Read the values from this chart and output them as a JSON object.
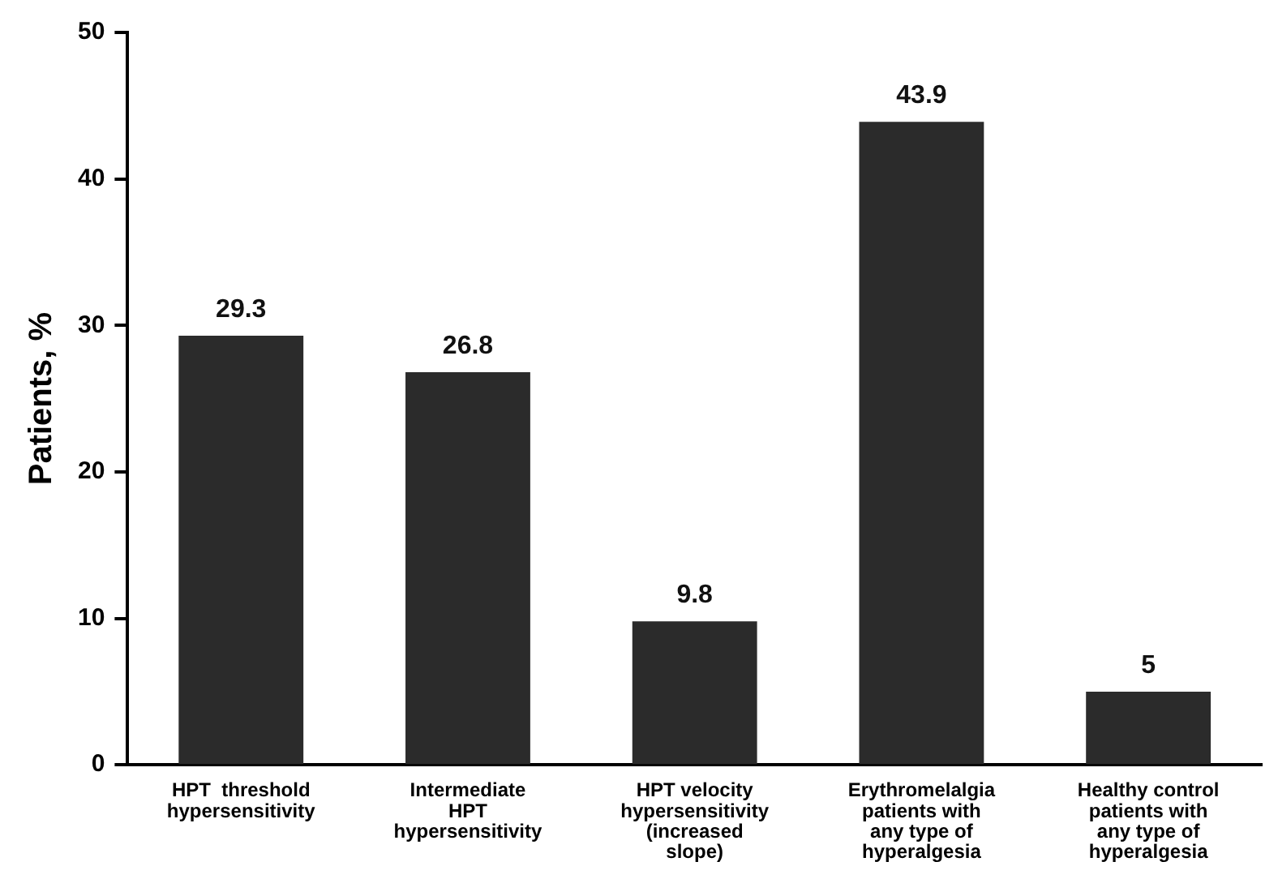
{
  "chart_data": {
    "type": "bar",
    "ylabel": "Patients, %",
    "categories": [
      "HPT  threshold\nhypersensitivity",
      "Intermediate\nHPT\nhypersensitivity",
      "HPT velocity\nhypersensitivity\n(increased\nslope)",
      "Erythromelalgia\npatients with\nany type of\nhyperalgesia",
      "Healthy control\npatients with\nany type of\nhyperalgesia"
    ],
    "values": [
      29.3,
      26.8,
      9.8,
      43.9,
      5
    ],
    "color": "#2b2b2b",
    "ylim": [
      0,
      50
    ],
    "yticks": [
      0,
      10,
      20,
      30,
      40,
      50
    ],
    "grid": false,
    "data_labels": true
  }
}
